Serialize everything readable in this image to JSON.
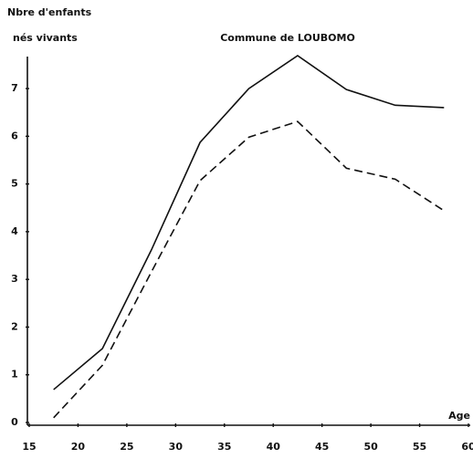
{
  "chart_data": {
    "type": "line",
    "title": "Commune de LOUBOMO",
    "ylabel": [
      "Nbre d'enfants",
      "nés vivants"
    ],
    "xlabel": "Age",
    "x": [
      17.5,
      22.5,
      27.5,
      32.5,
      37.5,
      42.5,
      47.5,
      52.5,
      57.5
    ],
    "series": [
      {
        "color": "#111111",
        "dash": "solid",
        "values": [
          0.69,
          1.55,
          3.61,
          5.87,
          7.0,
          7.69,
          6.98,
          6.65,
          6.6
        ]
      },
      {
        "color": "#111111",
        "dash": "dashed",
        "values": [
          0.1,
          1.2,
          3.15,
          5.07,
          5.98,
          6.31,
          5.33,
          5.1,
          4.44
        ]
      }
    ],
    "xlim": [
      15,
      60
    ],
    "xticks": [
      15,
      20,
      25,
      30,
      35,
      40,
      45,
      50,
      55,
      60
    ],
    "ylim": [
      0,
      7.9
    ],
    "yticks": [
      0,
      1,
      2,
      3,
      4,
      5,
      6,
      7
    ],
    "grid": false
  }
}
